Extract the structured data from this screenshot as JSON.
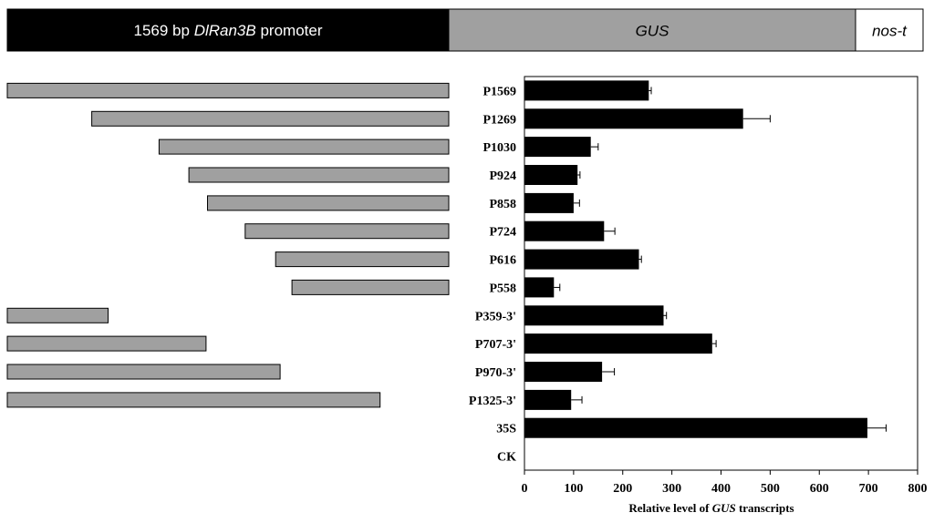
{
  "construct": {
    "promoter_prefix": "1569 bp ",
    "promoter_gene": "DlRan3B",
    "promoter_suffix": " promoter",
    "reporter": "GUS",
    "terminator": "nos-t"
  },
  "colors": {
    "promoter_block": "#000000",
    "reporter_block": "#a0a0a0",
    "terminator_block": "#ffffff",
    "fragment_bar": "#a0a0a0",
    "data_bar": "#000000"
  },
  "fragments": [
    {
      "label": "P1569",
      "start": 1569,
      "end": 1
    },
    {
      "label": "P1269",
      "start": 1269,
      "end": 1
    },
    {
      "label": "P1030",
      "start": 1030,
      "end": 1
    },
    {
      "label": "P924",
      "start": 924,
      "end": 1
    },
    {
      "label": "P858",
      "start": 858,
      "end": 1
    },
    {
      "label": "P724",
      "start": 724,
      "end": 1
    },
    {
      "label": "P616",
      "start": 616,
      "end": 1
    },
    {
      "label": "P558",
      "start": 558,
      "end": 1
    },
    {
      "label": "P359-3'",
      "start": 1569,
      "end": 1211
    },
    {
      "label": "P707-3'",
      "start": 1569,
      "end": 863
    },
    {
      "label": "P970-3'",
      "start": 1569,
      "end": 600
    },
    {
      "label": "P1325-3'",
      "start": 1569,
      "end": 245
    },
    {
      "label": "35S",
      "start": null,
      "end": null
    },
    {
      "label": "CK",
      "start": null,
      "end": null
    }
  ],
  "chart_data": {
    "type": "bar",
    "orientation": "horizontal",
    "categories": [
      "P1569",
      "P1269",
      "P1030",
      "P924",
      "P858",
      "P724",
      "P616",
      "P558",
      "P359-3'",
      "P707-3'",
      "P970-3'",
      "P1325-3'",
      "35S",
      "CK"
    ],
    "values": [
      253,
      445,
      135,
      108,
      100,
      162,
      233,
      60,
      283,
      382,
      158,
      95,
      698,
      0
    ],
    "errors": [
      5,
      55,
      15,
      5,
      12,
      22,
      5,
      12,
      6,
      8,
      25,
      22,
      38,
      0
    ],
    "xlim": [
      0,
      800
    ],
    "xticks": [
      "0",
      "100",
      "200",
      "300",
      "400",
      "500",
      "600",
      "700",
      "800"
    ],
    "xlabel_prefix": "Relative level of ",
    "xlabel_gene": "GUS",
    "xlabel_suffix": " transcripts",
    "grid": false
  }
}
